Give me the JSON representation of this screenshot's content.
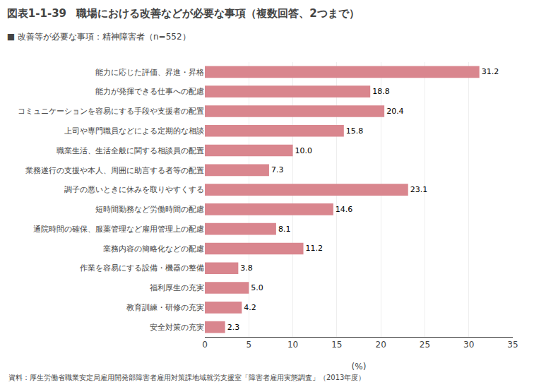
{
  "chart_data": {
    "type": "bar",
    "orientation": "horizontal",
    "title": "職場における改善などが必要な事項（複数回答、2つまで）",
    "subtitle": "■ 改善等が必要な事項：精神障害者（n=552）",
    "annotations": [
      "図表1-1-39",
      "資料：厚生労働省職業安定局雇用開発部障害者雇用対策課地域就労支援室「障害者雇用実態調査」（2013年度）"
    ],
    "xlabel": "(%)",
    "categories": [
      "能力に応じた評価、昇進・昇格",
      "能力が発揮できる仕事への配慮",
      "コミュニケーションを容易にする手段や支援者の配置",
      "上司や専門職員などによる定期的な相談",
      "職業生活、生活全般に関する相談員の配置",
      "業務遂行の支援や本人、周囲に助言する者等の配置",
      "調子の悪いときに休みを取りやすくする",
      "短時間勤務など労働時間の配慮",
      "通院時間の確保、服薬管理など雇用管理上の配慮",
      "業務内容の簡略化などの配慮",
      "作業を容易にする設備・機器の整備",
      "福利厚生の充実",
      "教育訓練・研修の充実",
      "安全対策の充実"
    ],
    "values": [
      31.2,
      18.8,
      20.4,
      15.8,
      10.0,
      7.3,
      23.1,
      14.6,
      8.1,
      11.2,
      3.8,
      5.0,
      4.2,
      2.3
    ],
    "value_labels": [
      "31.2",
      "18.8",
      "20.4",
      "15.8",
      "10.0",
      "7.3",
      "23.1",
      "14.6",
      "8.1",
      "11.2",
      "3.8",
      "5.0",
      "4.2",
      "2.3"
    ],
    "color": "#d9868e",
    "data_labels": true,
    "xlim": [
      0,
      35
    ],
    "xticks": [
      0,
      5,
      10,
      15,
      20,
      25,
      30,
      35
    ],
    "grid": true
  }
}
